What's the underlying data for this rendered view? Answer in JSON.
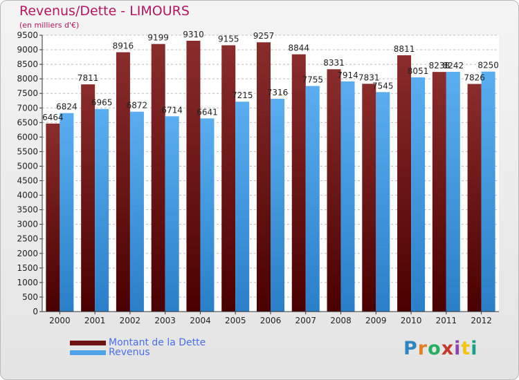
{
  "header": {
    "title": "Revenus/Dette - LIMOURS",
    "subtitle": "(en milliers d'€)"
  },
  "logo": {
    "text": "Proxiti",
    "colors": [
      "#2e86c1",
      "#e67e22",
      "#27ae60",
      "#c0392b",
      "#8e44ad",
      "#f1c40f",
      "#16a085"
    ]
  },
  "colors": {
    "debt": "#6e1212",
    "revenue": "#4fa3e6",
    "text": "#b5165f",
    "legend_text": "#4a6ee8"
  },
  "chart_data": {
    "type": "bar",
    "title": "Revenus/Dette - LIMOURS",
    "subtitle": "(en milliers d'€)",
    "categories": [
      "2000",
      "2001",
      "2002",
      "2003",
      "2004",
      "2005",
      "2006",
      "2007",
      "2008",
      "2009",
      "2010",
      "2011",
      "2012"
    ],
    "series": [
      {
        "name": "Montant de la Dette",
        "values": [
          6464,
          7811,
          8916,
          9199,
          9310,
          9155,
          9257,
          8844,
          8331,
          7831,
          8811,
          8238,
          7826
        ],
        "labels": [
          "6464",
          "7811",
          "8916",
          "9199",
          "9310",
          "9155",
          "9257",
          "8844",
          "8331",
          "7831",
          "8811",
          "8238",
          "7826"
        ]
      },
      {
        "name": "Revenus",
        "values": [
          6824,
          6965,
          6872,
          6714,
          6641,
          7215,
          7316,
          7755,
          7914,
          7545,
          8051,
          8242,
          8250
        ],
        "labels": [
          "6824",
          "6965",
          "6872",
          "6714",
          "6641",
          "7215",
          "7316",
          "7755",
          "7914",
          "7545",
          "8051",
          "8242",
          "8250"
        ]
      }
    ],
    "ylim": [
      0,
      9500
    ],
    "yticks": [
      "0",
      "500",
      "1000",
      "1500",
      "2000",
      "2500",
      "3000",
      "3500",
      "4000",
      "4500",
      "5000",
      "5500",
      "6000",
      "6500",
      "7000",
      "7500",
      "8000",
      "8500",
      "9000",
      "9500"
    ],
    "grid": true,
    "legend_position": "bottom-left"
  }
}
